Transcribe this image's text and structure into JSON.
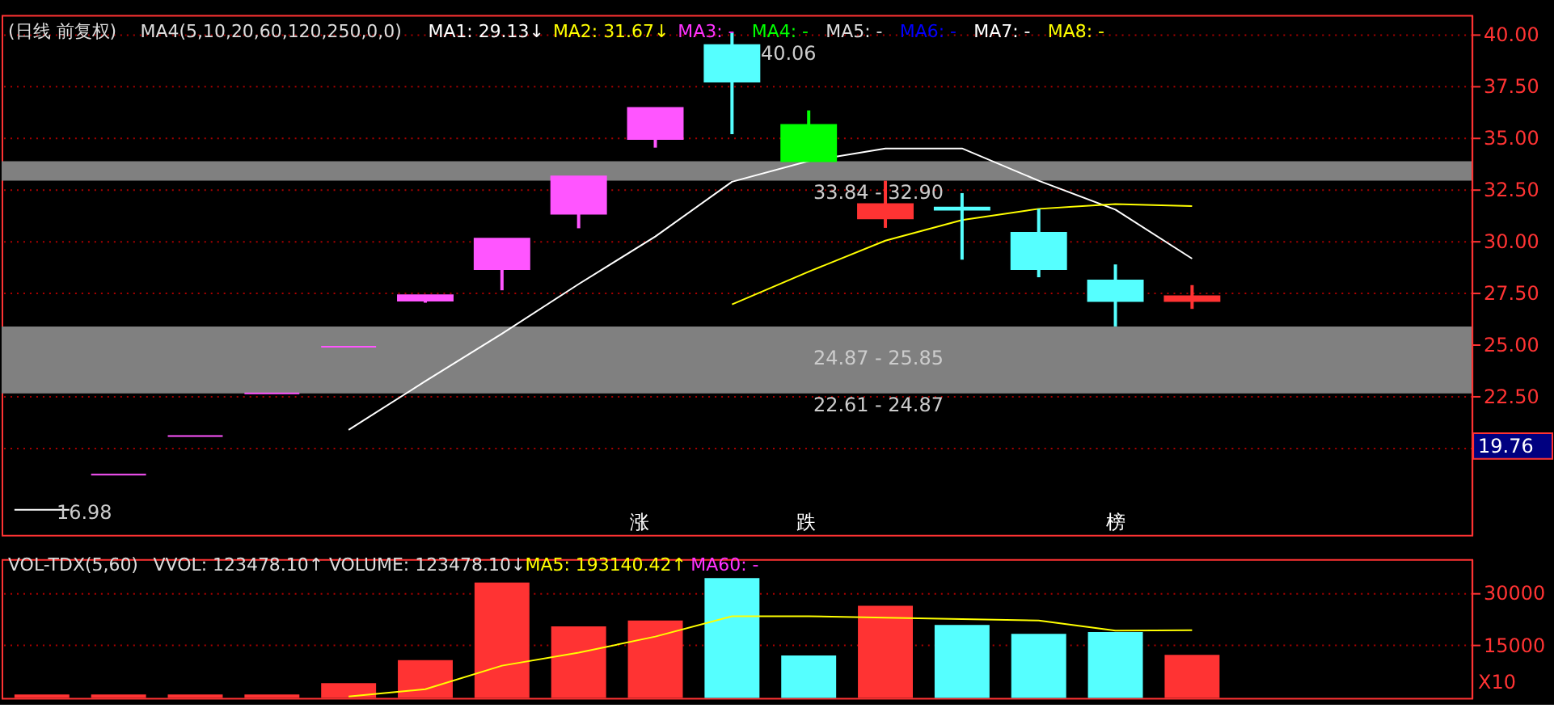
{
  "chart_data": [
    {
      "type": "candlestick",
      "title": "(日线 前复权)",
      "subtitle": "MA4(5,10,20,60,120,250,0,0)",
      "categories": [
        null,
        null,
        null,
        null,
        null,
        null,
        null,
        null,
        null,
        null,
        null,
        null,
        null,
        null,
        null,
        null
      ],
      "ohlc": [
        [
          16.98,
          16.98,
          16.98,
          16.98
        ],
        [
          18.68,
          18.68,
          18.68,
          18.68
        ],
        [
          20.55,
          20.55,
          20.55,
          20.55
        ],
        [
          22.61,
          22.61,
          22.61,
          22.61
        ],
        [
          24.87,
          24.87,
          24.87,
          24.87
        ],
        [
          27.1,
          27.36,
          27.0,
          27.36
        ],
        [
          28.62,
          30.1,
          27.6,
          30.1
        ],
        [
          31.3,
          33.11,
          30.6,
          33.11
        ],
        [
          34.92,
          36.42,
          34.5,
          36.42
        ],
        [
          39.46,
          40.06,
          35.15,
          37.69
        ],
        [
          35.6,
          36.3,
          33.84,
          33.84
        ],
        [
          31.08,
          32.9,
          30.62,
          31.77
        ],
        [
          31.6,
          32.3,
          29.08,
          31.5
        ],
        [
          30.38,
          31.54,
          28.23,
          28.62
        ],
        [
          28.08,
          28.85,
          25.85,
          27.08
        ],
        [
          27.08,
          27.85,
          26.7,
          27.31
        ]
      ],
      "colors": [
        "#ffffff",
        "#ff55ff",
        "#ff55ff",
        "#ff55ff",
        "#ff55ff",
        "#ff55ff",
        "#ff55ff",
        "#ff55ff",
        "#ff55ff",
        "#55ffff",
        "#00ff00",
        "#ff3333",
        "#55ffff",
        "#55ffff",
        "#55ffff",
        "#ff3333"
      ],
      "series": [
        {
          "name": "MA1: 29.13↓",
          "type": "line",
          "color": "#ffffff",
          "values": [
            null,
            null,
            null,
            null,
            20.85,
            23.2,
            25.5,
            27.9,
            30.2,
            32.85,
            33.85,
            34.46,
            34.46,
            32.9,
            31.5,
            29.13
          ]
        },
        {
          "name": "MA2: 31.67↓",
          "type": "line",
          "color": "#ffff00",
          "values": [
            null,
            null,
            null,
            null,
            null,
            null,
            null,
            null,
            null,
            26.92,
            28.5,
            30.0,
            31.0,
            31.54,
            31.77,
            31.67
          ]
        },
        {
          "name": "MA3: -",
          "type": "line",
          "color": "#ff33ff",
          "values": [
            null,
            null,
            null,
            null,
            null,
            null,
            null,
            null,
            null,
            null,
            null,
            null,
            null,
            null,
            null,
            null
          ]
        },
        {
          "name": "MA4: -",
          "type": "line",
          "color": "#00ff00",
          "values": [
            null,
            null,
            null,
            null,
            null,
            null,
            null,
            null,
            null,
            null,
            null,
            null,
            null,
            null,
            null,
            null
          ]
        },
        {
          "name": "MA5: -",
          "type": "line",
          "color": "#dddddd",
          "values": [
            null,
            null,
            null,
            null,
            null,
            null,
            null,
            null,
            null,
            null,
            null,
            null,
            null,
            null,
            null,
            null
          ]
        },
        {
          "name": "MA6: -",
          "type": "line",
          "color": "#0000ff",
          "values": [
            null,
            null,
            null,
            null,
            null,
            null,
            null,
            null,
            null,
            null,
            null,
            null,
            null,
            null,
            null,
            null
          ]
        },
        {
          "name": "MA7: -",
          "type": "line",
          "color": "#ffffff",
          "values": [
            null,
            null,
            null,
            null,
            null,
            null,
            null,
            null,
            null,
            null,
            null,
            null,
            null,
            null,
            null,
            null
          ]
        },
        {
          "name": "MA8: -",
          "type": "line",
          "color": "#ffff00",
          "values": [
            null,
            null,
            null,
            null,
            null,
            null,
            null,
            null,
            null,
            null,
            null,
            null,
            null,
            null,
            null,
            null
          ]
        }
      ],
      "bands": [
        {
          "axis": "y",
          "from": 32.9,
          "to": 33.84,
          "label": "33.84 - 32.90",
          "color": "#808080"
        },
        {
          "axis": "y",
          "from": 24.87,
          "to": 25.85,
          "label": "24.87 - 25.85",
          "color": "#808080"
        },
        {
          "axis": "y",
          "from": 22.61,
          "to": 24.87,
          "label": "22.61 - 24.87",
          "color": "#808080"
        }
      ],
      "annotations": [
        "40.06",
        "16.98",
        "19.76",
        "涨",
        "跌",
        "榜"
      ],
      "ylim": [
        15.77,
        40.92
      ],
      "yticks": [
        {
          "value": 20,
          "label": null
        },
        {
          "value": 22.5,
          "label": "22.50"
        },
        {
          "value": 25,
          "label": "25.00"
        },
        {
          "value": 27.5,
          "label": "27.50"
        },
        {
          "value": 30,
          "label": "30.00"
        },
        {
          "value": 32.5,
          "label": "32.50"
        },
        {
          "value": 35,
          "label": "35.00"
        },
        {
          "value": 37.5,
          "label": "37.50"
        },
        {
          "value": 40,
          "label": "40.00"
        }
      ],
      "grid": "y",
      "tick_labels": "y"
    },
    {
      "type": "bar",
      "title": "VOL-TDX(5,60)",
      "categories": [
        null,
        null,
        null,
        null,
        null,
        null,
        null,
        null,
        null,
        null,
        null,
        null,
        null,
        null,
        null,
        null
      ],
      "values": [
        1000,
        1000,
        1000,
        1000,
        4200,
        10800,
        32900,
        20400,
        22100,
        34200,
        12100,
        26300,
        20800,
        18300,
        18800,
        12300
      ],
      "colors": [
        "#ff3333",
        "#ff3333",
        "#ff3333",
        "#ff3333",
        "#ff3333",
        "#ff3333",
        "#ff3333",
        "#ff3333",
        "#ff3333",
        "#55ffff",
        "#55ffff",
        "#ff3333",
        "#55ffff",
        "#55ffff",
        "#55ffff",
        "#ff3333"
      ],
      "series": [
        {
          "name": "MA5: 193140.42↑",
          "type": "line",
          "color": "#ffff00",
          "values": [
            null,
            null,
            null,
            null,
            400,
            2500,
            9200,
            12900,
            17500,
            23300,
            23300,
            22900,
            22500,
            22100,
            19200,
            19300
          ]
        },
        {
          "name": "MA60: -",
          "type": "line",
          "color": "#ff33ff",
          "values": [
            null,
            null,
            null,
            null,
            null,
            null,
            null,
            null,
            null,
            null,
            null,
            null,
            null,
            null,
            null,
            null
          ]
        }
      ],
      "annotations": [
        "VVOL: 123478.10↑",
        "VOLUME: 123478.10↓",
        "X10"
      ],
      "ylim": [
        0,
        39600
      ],
      "yticks": [
        15000,
        30000
      ],
      "grid": "y",
      "tick_labels": "y"
    }
  ]
}
